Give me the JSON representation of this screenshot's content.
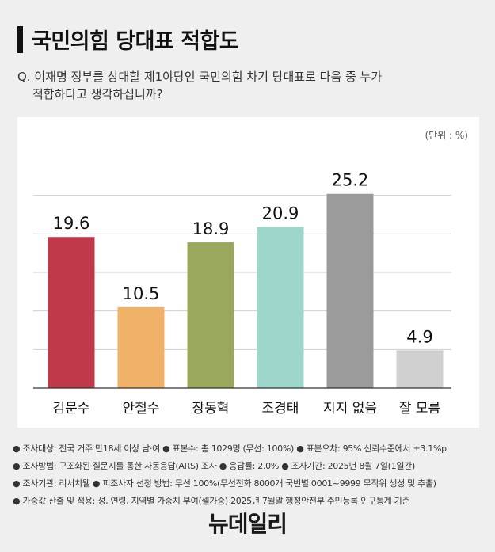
{
  "header": {
    "title": "국민의힘 당대표 적합도",
    "question_line1": "Q. 이재명 정부를 상대할 제1야당인 국민의힘 차기 당대표로 다음 중 누가",
    "question_line2": "적합하다고 생각하십니까?"
  },
  "chart_data": {
    "type": "bar",
    "unit_label": "(단위 : %)",
    "categories": [
      "김문수",
      "안철수",
      "장동혁",
      "조경태",
      "지지 없음",
      "잘 모름"
    ],
    "values": [
      19.6,
      10.5,
      18.9,
      20.9,
      25.2,
      4.9
    ],
    "value_labels": [
      "19.6",
      "10.5",
      "18.9",
      "20.9",
      "25.2",
      "4.9"
    ],
    "colors": [
      "#c0394b",
      "#f0b169",
      "#9aa85e",
      "#9dd7cb",
      "#9b9b9b",
      "#d0d0d0"
    ],
    "ylim": [
      0,
      30
    ],
    "grid": true
  },
  "footnotes": [
    "● 조사대상: 전국 거주 만18세 이상 남·여  ● 표본수: 총 1029명 (무선: 100%)  ● 표본오차: 95% 신뢰수준에서 ±3.1%p",
    "● 조사방법: 구조화된 질문지를 통한 자동응답(ARS) 조사  ● 응답률: 2.0%  ● 조사기간: 2025년 8월 7일(1일간)",
    "● 조사기관: 리서치웰  ● 피조사자 선정 방법: 무선 100%(무선전화 8000개 국번별 0001~9999 무작위 생성 및 추출)",
    "● 가중값 산출 및 적용: 성, 연령, 지역별 가중치 부여(셀가중) 2025년 7월말 행정안전부 주민등록 인구통계 기준"
  ],
  "logo": "뉴데일리"
}
